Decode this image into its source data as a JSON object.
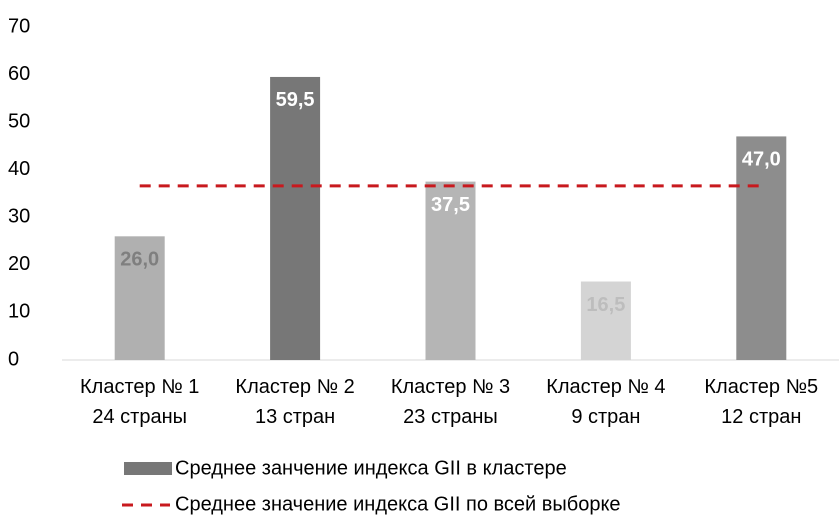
{
  "chart_data": {
    "type": "bar",
    "categories": [
      "Кластер № 1\n24 страны",
      "Кластер № 2\n13 стран",
      "Кластер № 3\n23 страны",
      "Кластер № 4\n9 стран",
      "Кластер №5\n12 стран"
    ],
    "series_name": "Среднее занчение индекса GII в кластере",
    "values": [
      26.0,
      59.5,
      37.5,
      16.5,
      47.0
    ],
    "value_labels": [
      "26,0",
      "59,5",
      "37,5",
      "16,5",
      "47,0"
    ],
    "colors": [
      "#b0b0b0",
      "#777777",
      "#b5b5b5",
      "#d4d4d4",
      "#8d8d8d"
    ],
    "value_label_colors": [
      "#7f7f7f",
      "#ffffff",
      "#ffffff",
      "#bdbdbd",
      "#ffffff"
    ],
    "legend_color": "#777777",
    "reference_line": {
      "name": "Среднее значение индекса GII по всей выборке",
      "value": 36.6,
      "color": "#c8191e",
      "style": "dashed"
    },
    "ylim": [
      0,
      70
    ],
    "yticks": [
      0,
      10,
      20,
      30,
      40,
      50,
      60,
      70
    ],
    "grid": false
  }
}
